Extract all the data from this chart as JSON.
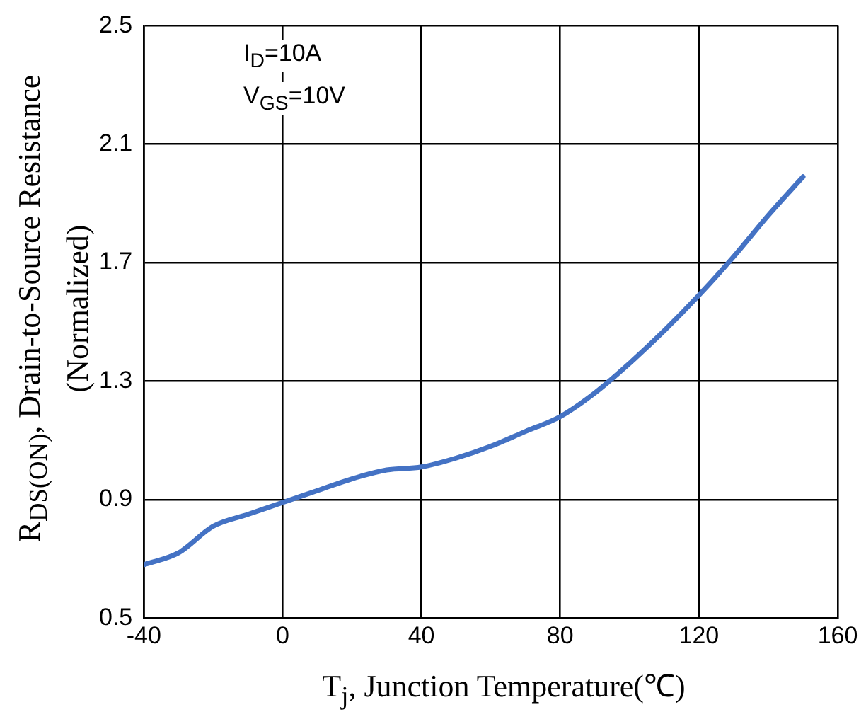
{
  "chart_data": {
    "type": "line",
    "xlabel": "T$_{j}$, Junction Temperature(℃)",
    "ylabel": "R$_{DS(ON)}$, Drain-to-Source Resistance (Normalized)",
    "annotations": [
      "I$_{D}$=10A",
      "V$_{GS}$=10V"
    ],
    "x": [
      -40,
      -30,
      -20,
      -10,
      0,
      10,
      20,
      30,
      40,
      50,
      60,
      70,
      80,
      90,
      100,
      110,
      120,
      130,
      140,
      150
    ],
    "series": [
      {
        "color": "#4472c4",
        "values": [
          0.68,
          0.72,
          0.81,
          0.85,
          0.89,
          0.93,
          0.97,
          1.0,
          1.01,
          1.04,
          1.08,
          1.13,
          1.18,
          1.26,
          1.36,
          1.47,
          1.59,
          1.72,
          1.86,
          1.99
        ]
      }
    ],
    "xlim": [
      -40,
      160
    ],
    "xticks": [
      -40,
      0,
      40,
      80,
      120,
      160
    ],
    "ylim": [
      0.5,
      2.5
    ],
    "yticks": [
      0.5,
      0.9,
      1.3,
      1.7,
      2.1,
      2.5
    ],
    "grid": true,
    "legend": false,
    "marker": "none",
    "line_style": "solid"
  }
}
